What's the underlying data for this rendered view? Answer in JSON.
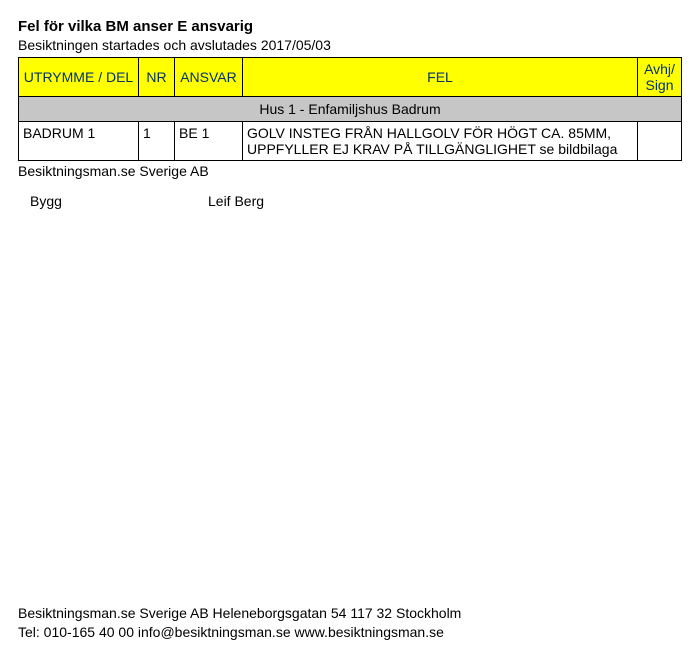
{
  "title": "Fel för vilka BM anser E ansvarig",
  "subtitle": "Besiktningen startades och avslutades 2017/05/03",
  "table": {
    "header_bg": "#ffff00",
    "header_fg": "#003366",
    "section_bg": "#c6c6c6",
    "border_color": "#000000",
    "columns": {
      "room": "UTRYMME / DEL",
      "nr": "NR",
      "ansvar": "ANSVAR",
      "fel": "FEL",
      "sign": "Avhj/\nSign"
    },
    "section": "Hus 1 - Enfamiljshus Badrum",
    "rows": [
      {
        "room": "BADRUM 1",
        "nr": "1",
        "ansvar": "BE 1",
        "fel": "GOLV INSTEG FRÅN HALLGOLV FÖR HÖGT CA. 85MM, UPPFYLLER EJ KRAV PÅ TILLGÄNGLIGHET se bildbilaga",
        "sign": ""
      }
    ]
  },
  "company_line": "Besiktningsman.se Sverige AB",
  "signatures": {
    "left": "Bygg",
    "right": "Leif Berg"
  },
  "footer": {
    "line1": "Besiktningsman.se Sverige AB Heleneborgsgatan 54 117 32 Stockholm",
    "line2": "Tel: 010-165 40 00 info@besiktningsman.se www.besiktningsman.se"
  }
}
